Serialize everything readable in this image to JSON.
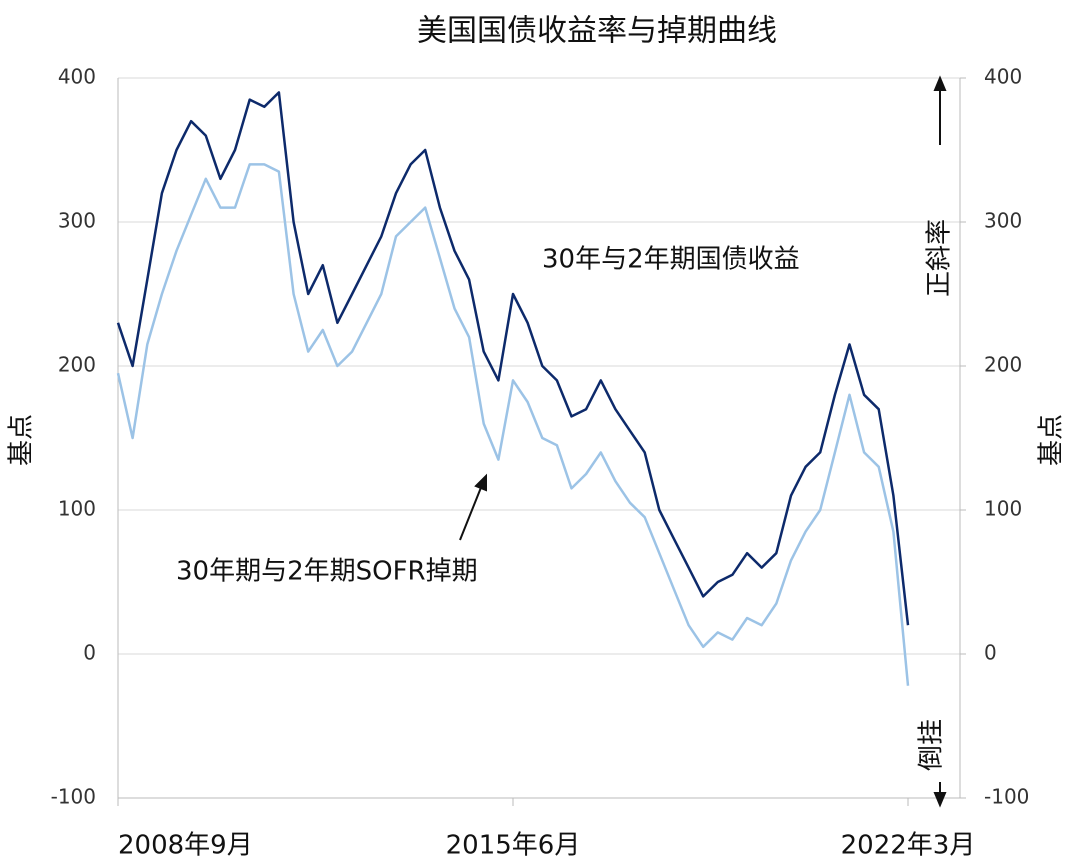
{
  "chart_data": {
    "type": "line",
    "title": "美国国债收益率与掉期曲线",
    "y_label": "基点",
    "y2_label": "基点",
    "annotations": [
      "正斜率",
      "倒挂"
    ],
    "categories": [
      "2008年9月",
      null,
      null,
      null,
      null,
      null,
      null,
      null,
      null,
      null,
      null,
      null,
      null,
      null,
      null,
      null,
      null,
      null,
      null,
      null,
      null,
      null,
      null,
      null,
      null,
      null,
      null,
      "2015年6月",
      null,
      null,
      null,
      null,
      null,
      null,
      null,
      null,
      null,
      null,
      null,
      null,
      null,
      null,
      null,
      null,
      null,
      null,
      null,
      null,
      null,
      null,
      null,
      null,
      null,
      null,
      "2022年3月"
    ],
    "series": [
      {
        "name": "30年与2年期国债收益",
        "color": "#0d2a6b",
        "values": [
          230,
          200,
          260,
          320,
          350,
          370,
          360,
          330,
          350,
          385,
          380,
          390,
          300,
          250,
          270,
          230,
          250,
          270,
          290,
          320,
          340,
          350,
          310,
          280,
          260,
          210,
          190,
          250,
          230,
          200,
          190,
          165,
          170,
          190,
          170,
          155,
          140,
          100,
          80,
          60,
          40,
          50,
          55,
          70,
          60,
          70,
          110,
          130,
          140,
          180,
          215,
          180,
          170,
          110,
          20
        ]
      },
      {
        "name": "30年期与2年期SOFR掉期",
        "color": "#9cc3e6",
        "values": [
          195,
          150,
          215,
          250,
          280,
          305,
          330,
          310,
          310,
          340,
          340,
          335,
          250,
          210,
          225,
          200,
          210,
          230,
          250,
          290,
          300,
          310,
          275,
          240,
          220,
          160,
          135,
          190,
          175,
          150,
          145,
          115,
          125,
          140,
          120,
          105,
          95,
          70,
          45,
          20,
          5,
          15,
          10,
          25,
          20,
          35,
          65,
          85,
          100,
          140,
          180,
          140,
          130,
          85,
          -22
        ]
      }
    ],
    "ylim": [
      -100,
      400
    ],
    "yticks": [
      -100,
      0,
      100,
      200,
      300,
      400
    ],
    "y2lim": [
      -100,
      400
    ],
    "y2ticks": [
      -100,
      0,
      100,
      200,
      300,
      400
    ],
    "grid": true
  }
}
